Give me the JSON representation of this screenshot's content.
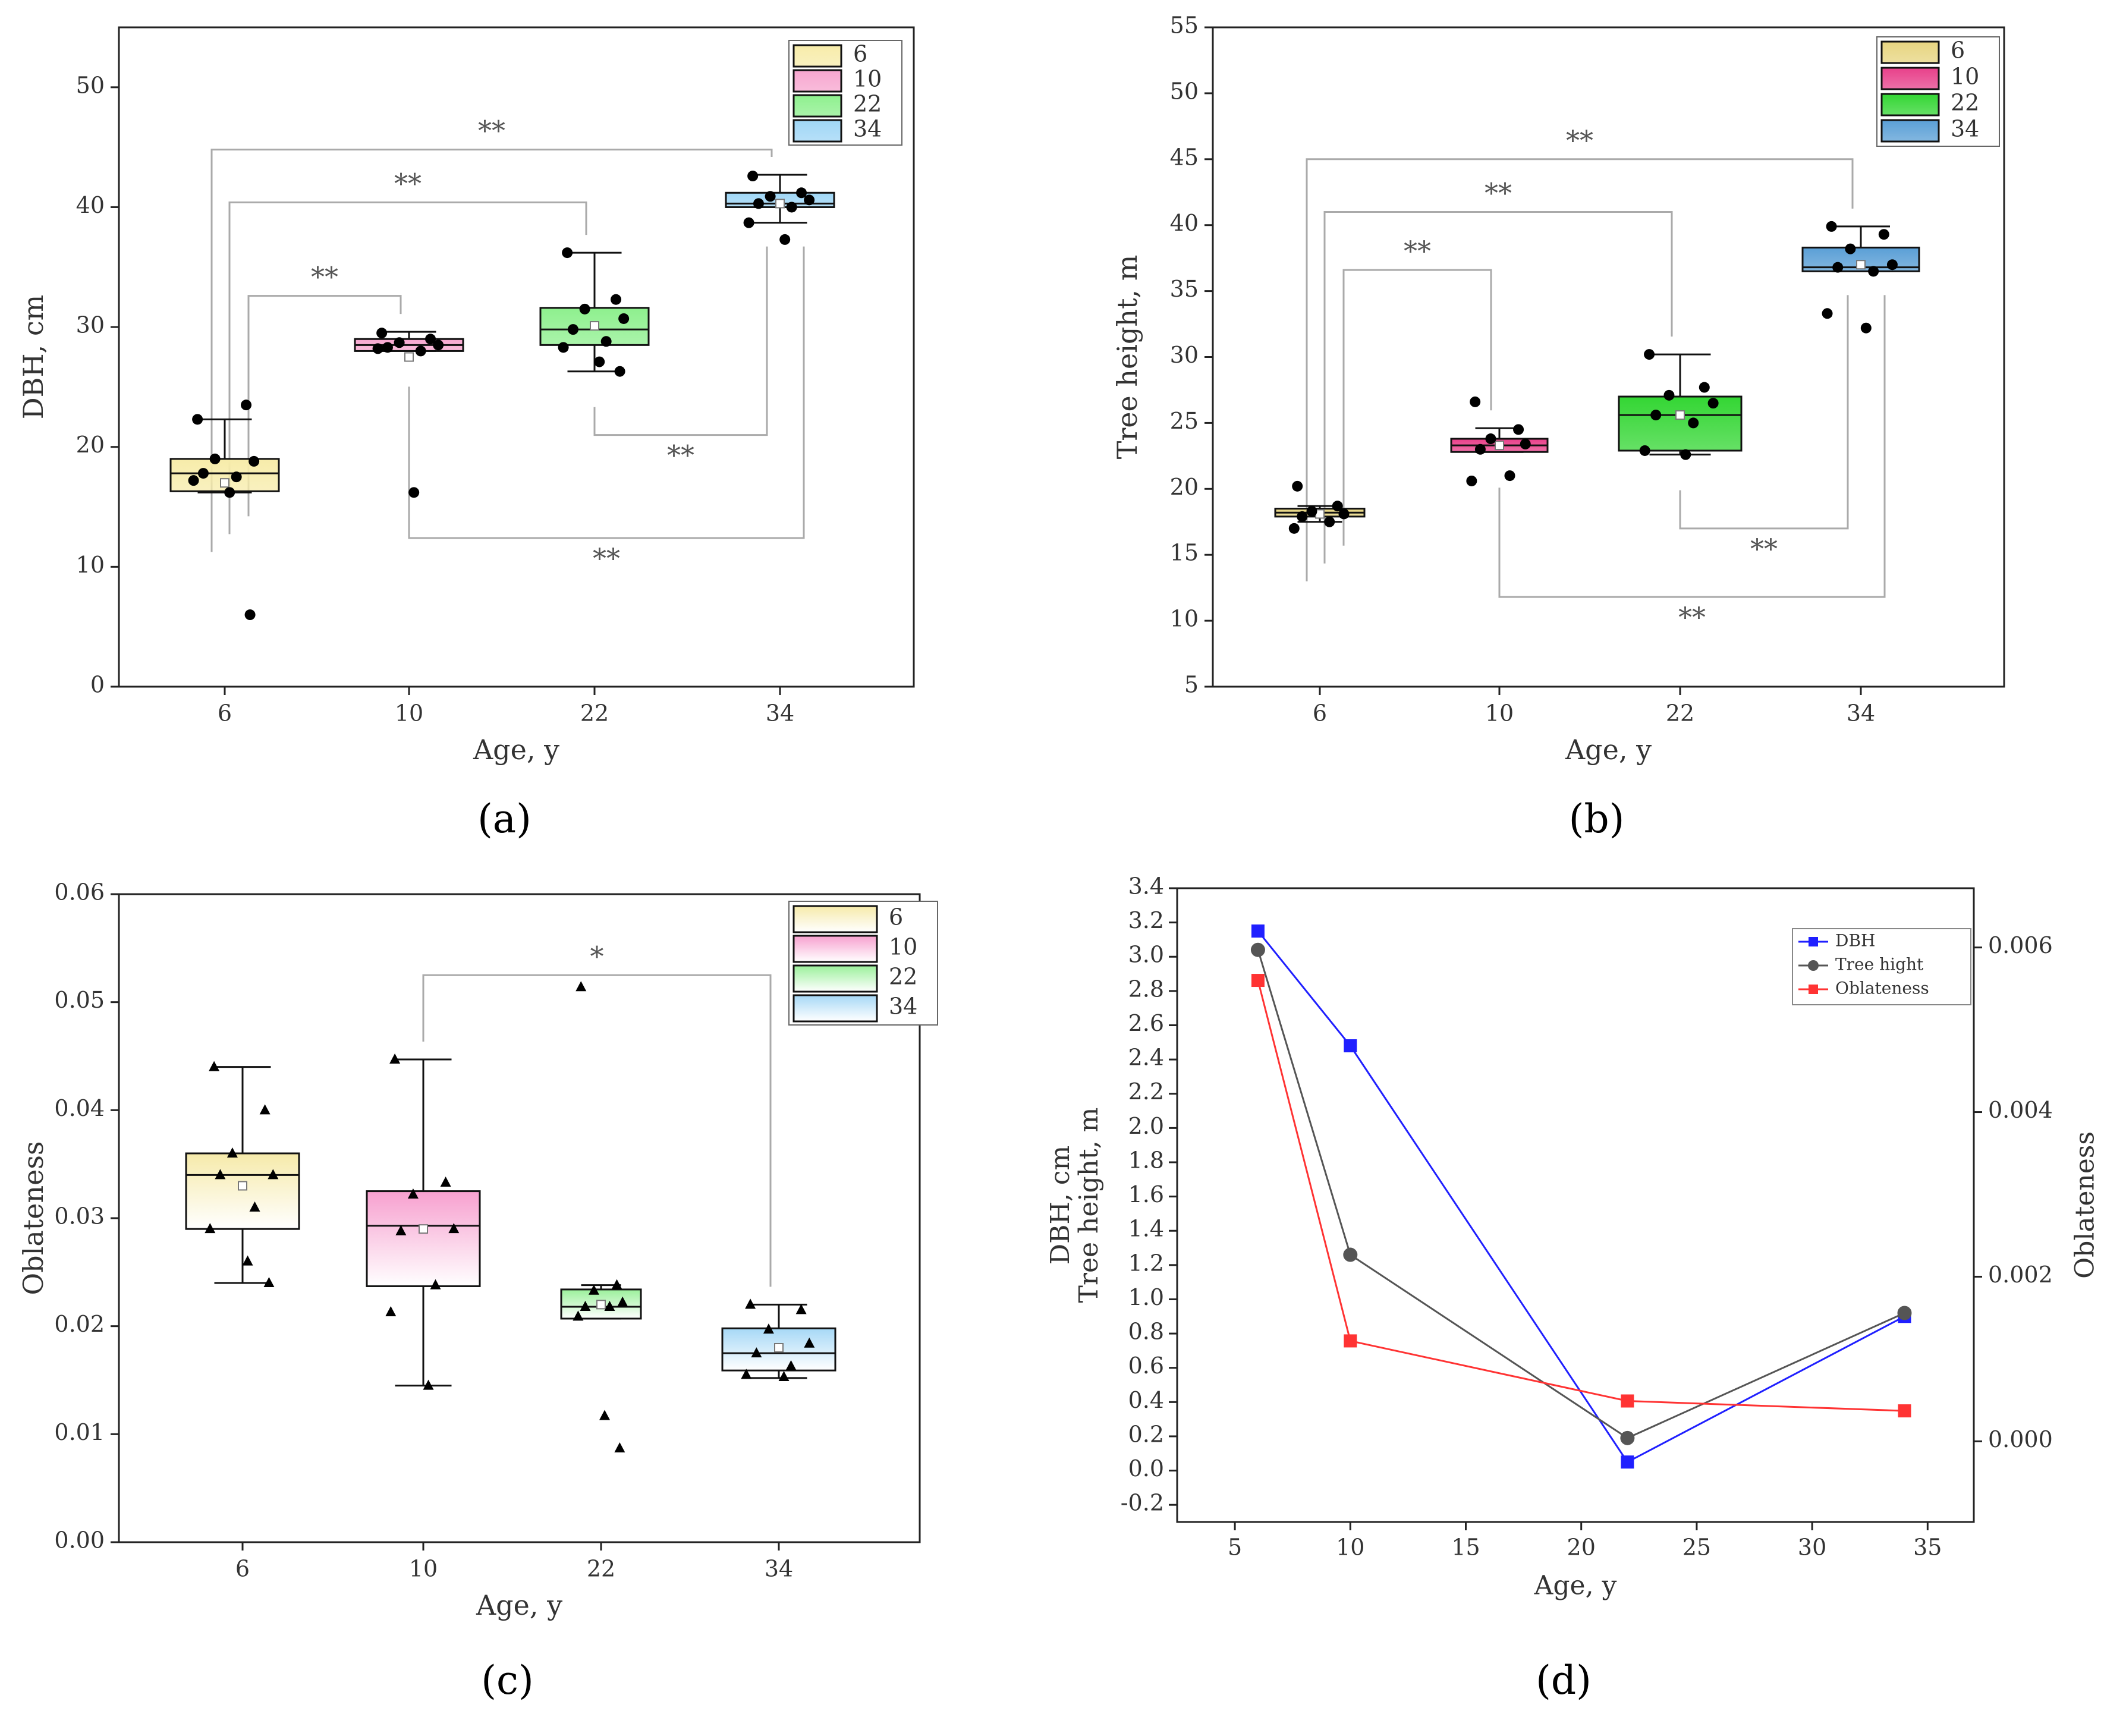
{
  "chart_data": [
    {
      "id": "a",
      "type": "box",
      "caption": "(a)",
      "title": "",
      "xlabel": "Age, y",
      "ylabel": "DBH, cm",
      "ylim": [
        0,
        55
      ],
      "yticks": [
        0,
        10,
        20,
        30,
        40,
        50
      ],
      "categories": [
        "6",
        "10",
        "22",
        "34"
      ],
      "legend": {
        "position": "top-right",
        "entries": [
          "6",
          "10",
          "22",
          "34"
        ]
      },
      "colors": [
        "#f7ecaa",
        "#f7a6cf",
        "#8ef08e",
        "#9fd6f6"
      ],
      "boxes": [
        {
          "label": "6",
          "q1": 16.3,
          "median": 17.8,
          "q3": 19.0,
          "whisker_low": 16.2,
          "whisker_high": 22.3,
          "mean": 17.0,
          "points": [
            22.3,
            23.5,
            19.0,
            18.8,
            17.8,
            17.5,
            17.2,
            16.2,
            6.0
          ]
        },
        {
          "label": "10",
          "q1": 28.0,
          "median": 28.5,
          "q3": 29.0,
          "whisker_low": 28.0,
          "whisker_high": 29.6,
          "mean": 27.5,
          "points": [
            29.5,
            29.0,
            28.7,
            28.5,
            28.3,
            28.0,
            28.2,
            16.2
          ]
        },
        {
          "label": "22",
          "q1": 28.5,
          "median": 29.8,
          "q3": 31.6,
          "whisker_low": 26.3,
          "whisker_high": 36.2,
          "mean": 30.1,
          "points": [
            36.2,
            32.3,
            31.5,
            30.7,
            29.8,
            28.8,
            28.3,
            27.1,
            26.3
          ]
        },
        {
          "label": "34",
          "q1": 40.0,
          "median": 40.3,
          "q3": 41.2,
          "whisker_low": 38.7,
          "whisker_high": 42.7,
          "mean": 40.3,
          "points": [
            42.6,
            41.2,
            40.9,
            40.6,
            40.3,
            40.0,
            38.7,
            37.3
          ]
        }
      ],
      "brackets": [
        {
          "from": "6",
          "to": "34",
          "y": 44.8,
          "label": "**",
          "side": "above"
        },
        {
          "from": "6",
          "to": "22",
          "y": 40.4,
          "label": "**",
          "side": "above"
        },
        {
          "from": "6",
          "to": "10",
          "y": 32.6,
          "label": "**",
          "side": "above"
        },
        {
          "from": "22",
          "to": "34",
          "y": 21.0,
          "label": "**",
          "side": "below"
        },
        {
          "from": "10",
          "to": "34",
          "y": 12.4,
          "label": "**",
          "side": "below"
        }
      ]
    },
    {
      "id": "b",
      "type": "box",
      "caption": "(b)",
      "title": "",
      "xlabel": "Age, y",
      "ylabel": "Tree height, m",
      "ylim": [
        5,
        55
      ],
      "yticks": [
        5,
        10,
        15,
        20,
        25,
        30,
        35,
        40,
        45,
        50,
        55
      ],
      "categories": [
        "6",
        "10",
        "22",
        "34"
      ],
      "legend": {
        "position": "top-right",
        "entries": [
          "6",
          "10",
          "22",
          "34"
        ]
      },
      "colors": [
        "#e7d580",
        "#e8408a",
        "#33d633",
        "#5a9fd6"
      ],
      "boxes": [
        {
          "label": "6",
          "q1": 17.9,
          "median": 18.2,
          "q3": 18.5,
          "whisker_low": 17.5,
          "whisker_high": 18.7,
          "mean": 18.1,
          "points": [
            20.2,
            18.7,
            18.3,
            18.1,
            17.9,
            17.5,
            17.0
          ]
        },
        {
          "label": "10",
          "q1": 22.8,
          "median": 23.3,
          "q3": 23.8,
          "whisker_low": 22.8,
          "whisker_high": 24.6,
          "mean": 23.3,
          "points": [
            26.6,
            24.5,
            23.8,
            23.4,
            23.0,
            21.0,
            20.6
          ]
        },
        {
          "label": "22",
          "q1": 22.9,
          "median": 25.6,
          "q3": 27.0,
          "whisker_low": 22.6,
          "whisker_high": 30.2,
          "mean": 25.6,
          "points": [
            30.2,
            27.7,
            27.1,
            26.5,
            25.6,
            25.0,
            22.9,
            22.6
          ]
        },
        {
          "label": "34",
          "q1": 36.5,
          "median": 36.8,
          "q3": 38.3,
          "whisker_low": 36.5,
          "whisker_high": 39.9,
          "mean": 37.0,
          "points": [
            39.9,
            39.3,
            38.2,
            37.0,
            36.8,
            36.5,
            33.3,
            32.2
          ]
        }
      ],
      "brackets": [
        {
          "from": "6",
          "to": "34",
          "y": 45.0,
          "label": "**",
          "side": "above"
        },
        {
          "from": "6",
          "to": "22",
          "y": 41.0,
          "label": "**",
          "side": "above"
        },
        {
          "from": "6",
          "to": "10",
          "y": 36.6,
          "label": "**",
          "side": "above"
        },
        {
          "from": "22",
          "to": "34",
          "y": 17.0,
          "label": "**",
          "side": "below"
        },
        {
          "from": "10",
          "to": "34",
          "y": 11.8,
          "label": "**",
          "side": "below"
        }
      ]
    },
    {
      "id": "c",
      "type": "box",
      "caption": "(c)",
      "title": "",
      "xlabel": "Age, y",
      "ylabel": "Oblateness",
      "ylim": [
        0,
        0.06
      ],
      "yticks": [
        "0.00",
        "0.01",
        "0.02",
        "0.03",
        "0.04",
        "0.05",
        "0.06"
      ],
      "categories": [
        "6",
        "10",
        "22",
        "34"
      ],
      "legend": {
        "position": "top-right",
        "entries": [
          "6",
          "10",
          "22",
          "34"
        ]
      },
      "colors": [
        "#f6eaaa",
        "#f7a0cf",
        "#9af09a",
        "#a6d8f6"
      ],
      "boxes": [
        {
          "label": "6",
          "q1": 0.029,
          "median": 0.034,
          "q3": 0.036,
          "whisker_low": 0.024,
          "whisker_high": 0.044,
          "mean": 0.033,
          "points": [
            0.044,
            0.04,
            0.036,
            0.034,
            0.034,
            0.031,
            0.029,
            0.026,
            0.024
          ]
        },
        {
          "label": "10",
          "q1": 0.0237,
          "median": 0.0293,
          "q3": 0.0325,
          "whisker_low": 0.0145,
          "whisker_high": 0.0447,
          "mean": 0.029,
          "points": [
            0.0447,
            0.0333,
            0.0322,
            0.029,
            0.0288,
            0.0238,
            0.0213,
            0.0145
          ]
        },
        {
          "label": "22",
          "q1": 0.0207,
          "median": 0.0218,
          "q3": 0.0234,
          "whisker_low": 0.0207,
          "whisker_high": 0.0238,
          "mean": 0.022,
          "points": [
            0.0514,
            0.0238,
            0.0233,
            0.0222,
            0.0218,
            0.0218,
            0.0209,
            0.0117,
            0.0087
          ]
        },
        {
          "label": "34",
          "q1": 0.0159,
          "median": 0.0175,
          "q3": 0.0198,
          "whisker_low": 0.0152,
          "whisker_high": 0.022,
          "mean": 0.018,
          "points": [
            0.022,
            0.0215,
            0.0197,
            0.0184,
            0.0175,
            0.0163,
            0.0155,
            0.0153
          ]
        }
      ],
      "brackets": [
        {
          "from": "10",
          "to": "34",
          "y": 0.0525,
          "label": "*",
          "side": "above"
        }
      ]
    },
    {
      "id": "d",
      "type": "line",
      "caption": "(d)",
      "title": "",
      "xlabel": "Age, y",
      "ylabel": "DBH, cm\nTree height, m",
      "y2label": "Oblateness",
      "xlim": [
        2.5,
        37
      ],
      "xticks": [
        5,
        10,
        15,
        20,
        25,
        30,
        35
      ],
      "ylim": [
        -0.3,
        3.4
      ],
      "yticks": [
        "-0.2",
        "0.0",
        "0.2",
        "0.4",
        "0.6",
        "0.8",
        "1.0",
        "1.2",
        "1.4",
        "1.6",
        "1.8",
        "2.0",
        "2.2",
        "2.4",
        "2.6",
        "2.8",
        "3.0",
        "3.2",
        "3.4"
      ],
      "y2lim": [
        -0.00098,
        0.00672
      ],
      "y2ticks": [
        "0.000",
        "0.002",
        "0.004",
        "0.006"
      ],
      "legend": {
        "position": "top-right"
      },
      "series": [
        {
          "name": "DBH",
          "color": "#1f1fff",
          "marker": "square",
          "axis": "left",
          "x": [
            6,
            10,
            22,
            34
          ],
          "y": [
            3.15,
            2.48,
            0.05,
            0.9
          ]
        },
        {
          "name": "Tree hight",
          "color": "#555555",
          "marker": "circle",
          "axis": "left",
          "x": [
            6,
            10,
            22,
            34
          ],
          "y": [
            3.04,
            1.26,
            0.19,
            0.92
          ]
        },
        {
          "name": "Oblateness",
          "color": "#ff3333",
          "marker": "square",
          "axis": "right",
          "x": [
            6,
            10,
            22,
            34
          ],
          "y": [
            0.0056,
            0.00122,
            0.00049,
            0.00037
          ]
        }
      ]
    }
  ]
}
